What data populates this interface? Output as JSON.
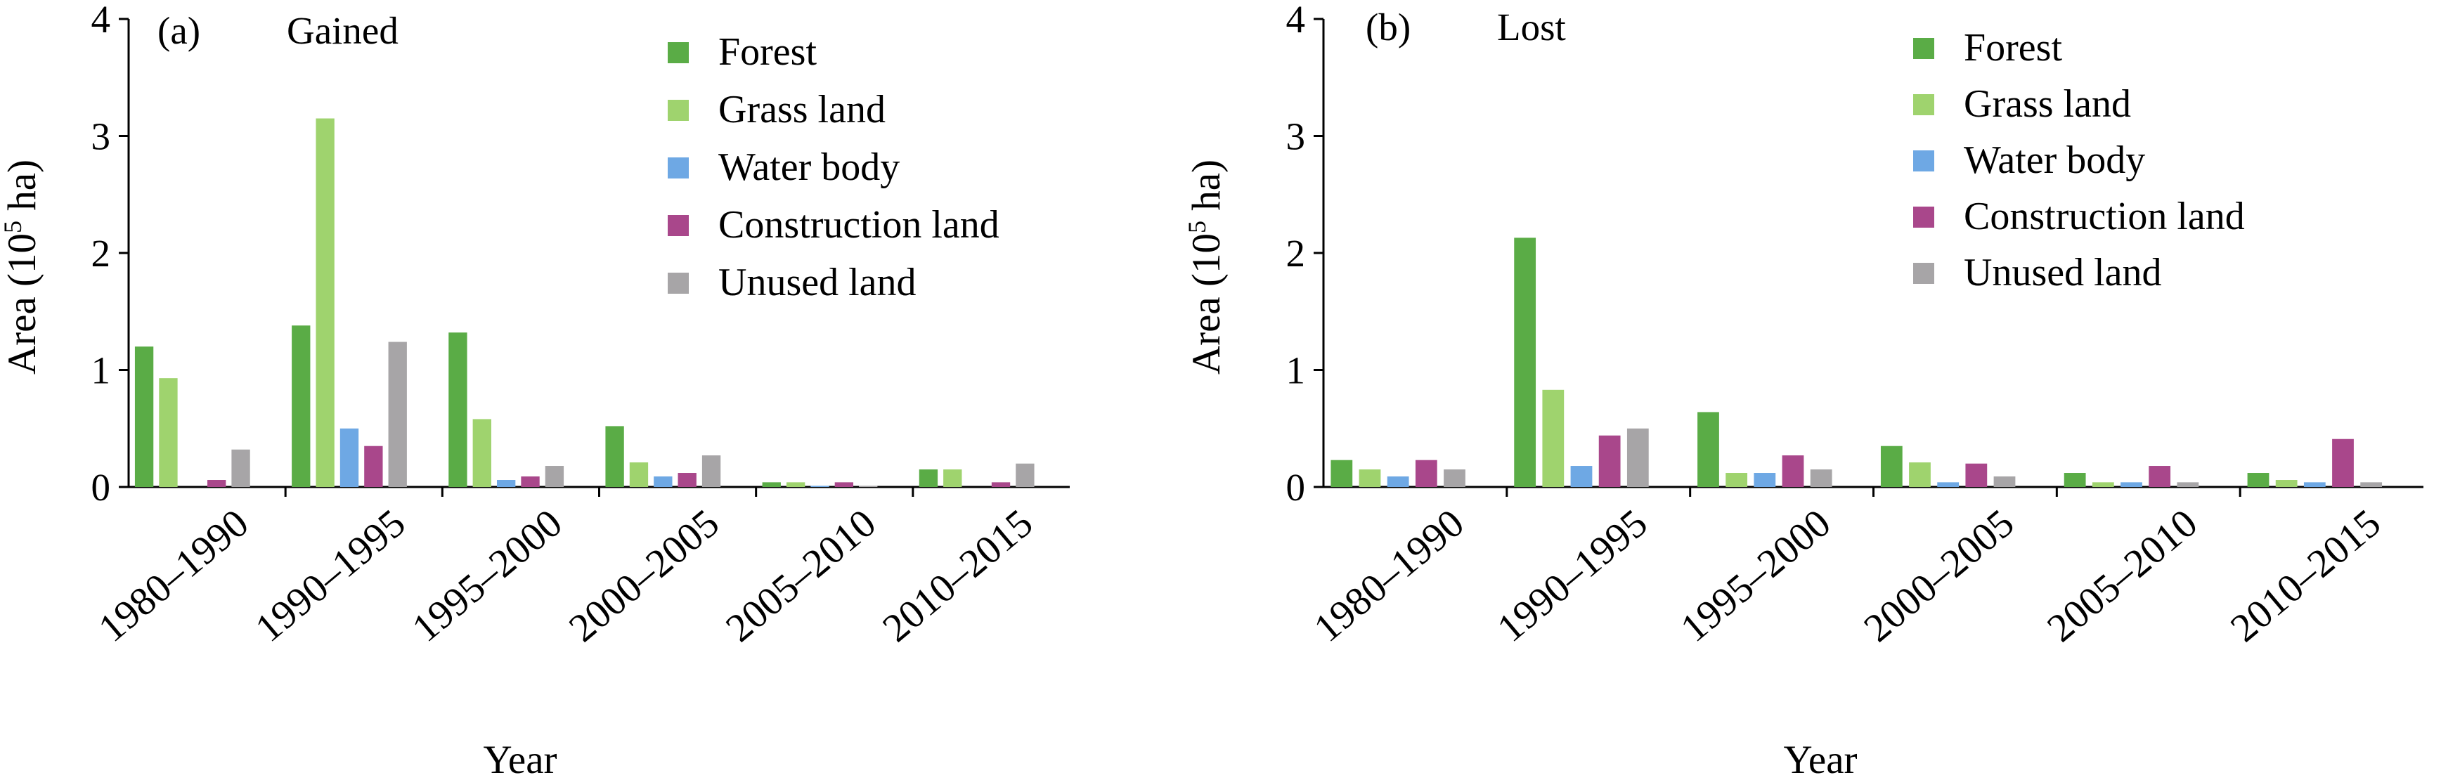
{
  "chart_data": [
    {
      "type": "bar",
      "panel_label": "(a)",
      "title": "Gained",
      "xlabel": "Year",
      "ylabel": "Area (10",
      "ylabel_sup": "5",
      "ylabel_end": " ha)",
      "ylim": [
        0,
        4
      ],
      "yticks": [
        "0",
        "1",
        "2",
        "3",
        "4"
      ],
      "categories": [
        "1980–1990",
        "1990–1995",
        "1995–2000",
        "2000–2005",
        "2005–2010",
        "2010–2015"
      ],
      "legend_position": "top-right",
      "series": [
        {
          "name": "Forest",
          "color": "#5aac46",
          "values": [
            1.2,
            1.38,
            1.32,
            0.52,
            0.04,
            0.15
          ]
        },
        {
          "name": "Grass land",
          "color": "#9fd36e",
          "values": [
            0.93,
            3.15,
            0.58,
            0.21,
            0.04,
            0.15
          ]
        },
        {
          "name": "Water body",
          "color": "#6ea8e4",
          "values": [
            0.0,
            0.5,
            0.06,
            0.09,
            0.01,
            0.0
          ]
        },
        {
          "name": "Construction land",
          "color": "#a9478b",
          "values": [
            0.06,
            0.35,
            0.09,
            0.12,
            0.04,
            0.04
          ]
        },
        {
          "name": "Unused land",
          "color": "#a7a5a7",
          "values": [
            0.32,
            1.24,
            0.18,
            0.27,
            0.01,
            0.2
          ]
        }
      ]
    },
    {
      "type": "bar",
      "panel_label": "(b)",
      "title": "Lost",
      "xlabel": "Year",
      "ylabel": "Area (10",
      "ylabel_sup": "5",
      "ylabel_end": " ha)",
      "ylim": [
        0,
        4
      ],
      "yticks": [
        "0",
        "1",
        "2",
        "3",
        "4"
      ],
      "categories": [
        "1980–1990",
        "1990–1995",
        "1995–2000",
        "2000–2005",
        "2005–2010",
        "2010–2015"
      ],
      "legend_position": "top-right",
      "series": [
        {
          "name": "Forest",
          "color": "#5aac46",
          "values": [
            0.23,
            2.13,
            0.64,
            0.35,
            0.12,
            0.12
          ]
        },
        {
          "name": "Grass land",
          "color": "#9fd36e",
          "values": [
            0.15,
            0.83,
            0.12,
            0.21,
            0.04,
            0.06
          ]
        },
        {
          "name": "Water body",
          "color": "#6ea8e4",
          "values": [
            0.09,
            0.18,
            0.12,
            0.04,
            0.04,
            0.04
          ]
        },
        {
          "name": "Construction land",
          "color": "#a9478b",
          "values": [
            0.23,
            0.44,
            0.27,
            0.2,
            0.18,
            0.41
          ]
        },
        {
          "name": "Unused land",
          "color": "#a7a5a7",
          "values": [
            0.15,
            0.5,
            0.15,
            0.09,
            0.04,
            0.04
          ]
        }
      ]
    }
  ]
}
